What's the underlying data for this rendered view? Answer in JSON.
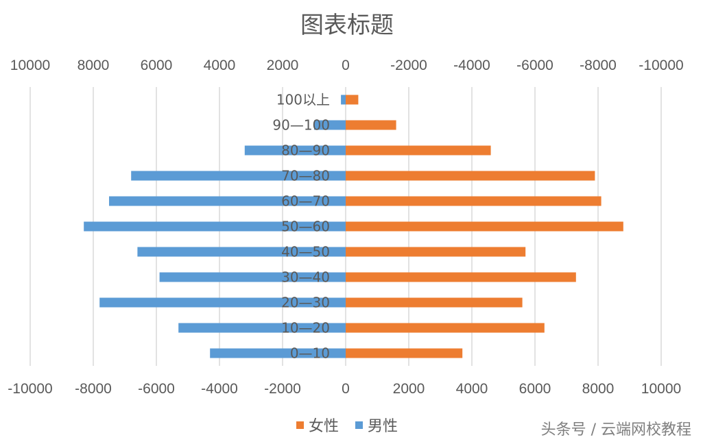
{
  "chart_data": {
    "type": "bar",
    "orientation": "horizontal",
    "title": "图表标题",
    "categories": [
      "100以上",
      "90—100",
      "80—90",
      "70—80",
      "60—70",
      "50—60",
      "40—50",
      "30—40",
      "20—30",
      "10—20",
      "0—10"
    ],
    "series": [
      {
        "name": "女性",
        "color": "#ED7D31",
        "values": [
          400,
          1600,
          4600,
          7900,
          8100,
          8800,
          5700,
          7300,
          5600,
          6300,
          3700
        ]
      },
      {
        "name": "男性",
        "color": "#5B9BD5",
        "values": [
          -150,
          -1000,
          -3200,
          -6800,
          -7500,
          -8300,
          -6600,
          -5900,
          -7800,
          -5300,
          -4300
        ]
      }
    ],
    "xlim": [
      -10000,
      10000
    ],
    "bottom_ticks": [
      "-10000",
      "-8000",
      "-6000",
      "-4000",
      "-2000",
      "0",
      "2000",
      "4000",
      "6000",
      "8000",
      "10000"
    ],
    "top_ticks": [
      "10000",
      "8000",
      "6000",
      "4000",
      "2000",
      "0",
      "-2000",
      "-4000",
      "-6000",
      "-8000",
      "-10000"
    ],
    "grid": true,
    "legend_position": "bottom"
  },
  "watermark": "头条号 / 云端网校教程"
}
